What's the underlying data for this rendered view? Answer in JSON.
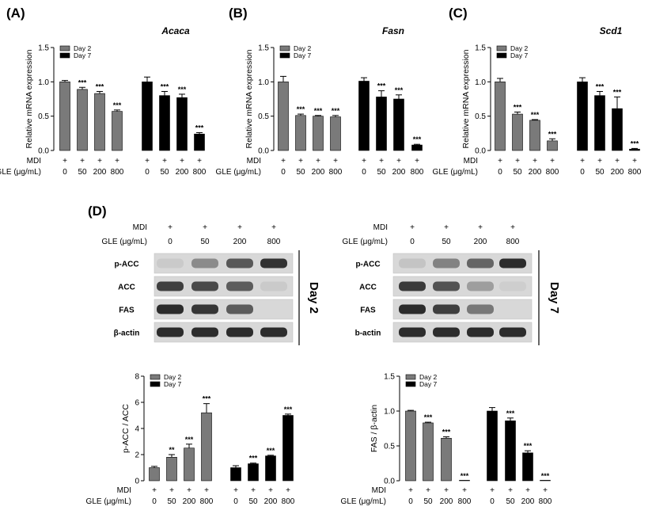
{
  "panels": {
    "a": "(A)",
    "b": "(B)",
    "c": "(C)",
    "d": "(D)"
  },
  "row_labels": {
    "mdi": "MDI",
    "gle": "GLE (μg/mL)"
  },
  "mdi_marks": [
    "+",
    "+",
    "+",
    "+"
  ],
  "doses": [
    "0",
    "50",
    "200",
    "800"
  ],
  "legend": [
    "Day 2",
    "Day 7"
  ],
  "colors": {
    "day2": "#7a7a7a",
    "day7": "#000000"
  },
  "chart_data": [
    {
      "id": "acaca",
      "type": "bar",
      "title": "Acaca",
      "ylabel": "Relative mRNA expression",
      "ylim": [
        0,
        1.5
      ],
      "yticks": [
        "0.0",
        "0.5",
        "1.0",
        "1.5"
      ],
      "legend_placement": "top-left",
      "categories": [
        "0",
        "50",
        "200",
        "800"
      ],
      "series": [
        {
          "name": "Day 2",
          "values": [
            1.0,
            0.89,
            0.83,
            0.57
          ],
          "errors": [
            0.02,
            0.03,
            0.03,
            0.02
          ],
          "sig": [
            "",
            "***",
            "***",
            "***"
          ]
        },
        {
          "name": "Day 7",
          "values": [
            1.0,
            0.8,
            0.77,
            0.24
          ],
          "errors": [
            0.07,
            0.06,
            0.05,
            0.02
          ],
          "sig": [
            "",
            "***",
            "***",
            "***"
          ]
        }
      ]
    },
    {
      "id": "fasn",
      "type": "bar",
      "title": "Fasn",
      "ylabel": "Relative mRNA expression",
      "ylim": [
        0,
        1.5
      ],
      "yticks": [
        "0.0",
        "0.5",
        "1.0",
        "1.5"
      ],
      "legend_placement": "top-left",
      "categories": [
        "0",
        "50",
        "200",
        "800"
      ],
      "series": [
        {
          "name": "Day 2",
          "values": [
            1.0,
            0.51,
            0.5,
            0.49
          ],
          "errors": [
            0.08,
            0.02,
            0.01,
            0.02
          ],
          "sig": [
            "",
            "***",
            "***",
            "***"
          ]
        },
        {
          "name": "Day 7",
          "values": [
            1.01,
            0.78,
            0.75,
            0.08
          ],
          "errors": [
            0.05,
            0.09,
            0.06,
            0.01
          ],
          "sig": [
            "",
            "***",
            "***",
            "***"
          ]
        }
      ]
    },
    {
      "id": "scd1",
      "type": "bar",
      "title": "Scd1",
      "ylabel": "Relative mRNA expression",
      "ylim": [
        0,
        1.5
      ],
      "yticks": [
        "0.0",
        "0.5",
        "1.0",
        "1.5"
      ],
      "legend_placement": "top-left",
      "categories": [
        "0",
        "50",
        "200",
        "800"
      ],
      "series": [
        {
          "name": "Day 2",
          "values": [
            1.0,
            0.53,
            0.44,
            0.14
          ],
          "errors": [
            0.05,
            0.03,
            0.01,
            0.03
          ],
          "sig": [
            "",
            "***",
            "***",
            "***"
          ]
        },
        {
          "name": "Day 7",
          "values": [
            1.0,
            0.8,
            0.61,
            0.02
          ],
          "errors": [
            0.06,
            0.06,
            0.17,
            0.01
          ],
          "sig": [
            "",
            "***",
            "***",
            "***"
          ]
        }
      ]
    },
    {
      "id": "pacc",
      "type": "bar",
      "title": "",
      "ylabel": "p-ACC / ACC",
      "ylim": [
        0,
        8
      ],
      "yticks": [
        "0",
        "2",
        "4",
        "6",
        "8"
      ],
      "legend_placement": "top-left",
      "categories": [
        "0",
        "50",
        "200",
        "800"
      ],
      "series": [
        {
          "name": "Day 2",
          "values": [
            1.0,
            1.8,
            2.5,
            5.2
          ],
          "errors": [
            0.1,
            0.2,
            0.3,
            0.7
          ],
          "sig": [
            "",
            "**",
            "***",
            "***"
          ]
        },
        {
          "name": "Day 7",
          "values": [
            1.0,
            1.3,
            1.9,
            5.0
          ],
          "errors": [
            0.15,
            0.05,
            0.05,
            0.1
          ],
          "sig": [
            "",
            "***",
            "***",
            "***"
          ]
        }
      ]
    },
    {
      "id": "fas",
      "type": "bar",
      "title": "",
      "ylabel": "FAS / β-actin",
      "ylim": [
        0,
        1.5
      ],
      "yticks": [
        "0.0",
        "0.5",
        "1.0",
        "1.5"
      ],
      "legend_placement": "top-left",
      "categories": [
        "0",
        "50",
        "200",
        "800"
      ],
      "series": [
        {
          "name": "Day 2",
          "values": [
            1.0,
            0.83,
            0.61,
            0.0
          ],
          "errors": [
            0.01,
            0.01,
            0.02,
            0.0
          ],
          "sig": [
            "",
            "***",
            "***",
            "***"
          ]
        },
        {
          "name": "Day 7",
          "values": [
            1.0,
            0.86,
            0.4,
            0.0
          ],
          "errors": [
            0.05,
            0.04,
            0.03,
            0.0
          ],
          "sig": [
            "",
            "***",
            "***",
            "***"
          ]
        }
      ]
    }
  ],
  "blots": [
    {
      "day_label": "Day 2",
      "rows": [
        {
          "label": "p-ACC",
          "intensities": [
            0.12,
            0.45,
            0.72,
            0.92
          ]
        },
        {
          "label": "ACC",
          "intensities": [
            0.85,
            0.8,
            0.7,
            0.12
          ]
        },
        {
          "label": "FAS",
          "intensities": [
            0.95,
            0.9,
            0.7,
            0.0
          ]
        },
        {
          "label": "β-actin",
          "intensities": [
            0.95,
            0.95,
            0.95,
            0.95
          ]
        }
      ]
    },
    {
      "day_label": "Day 7",
      "rows": [
        {
          "label": "p-ACC",
          "intensities": [
            0.15,
            0.5,
            0.65,
            0.95
          ]
        },
        {
          "label": "ACC",
          "intensities": [
            0.88,
            0.75,
            0.35,
            0.1
          ]
        },
        {
          "label": "FAS",
          "intensities": [
            0.95,
            0.85,
            0.55,
            0.0
          ]
        },
        {
          "label": "b-actin",
          "intensities": [
            0.95,
            0.95,
            0.95,
            0.95
          ]
        }
      ]
    }
  ]
}
